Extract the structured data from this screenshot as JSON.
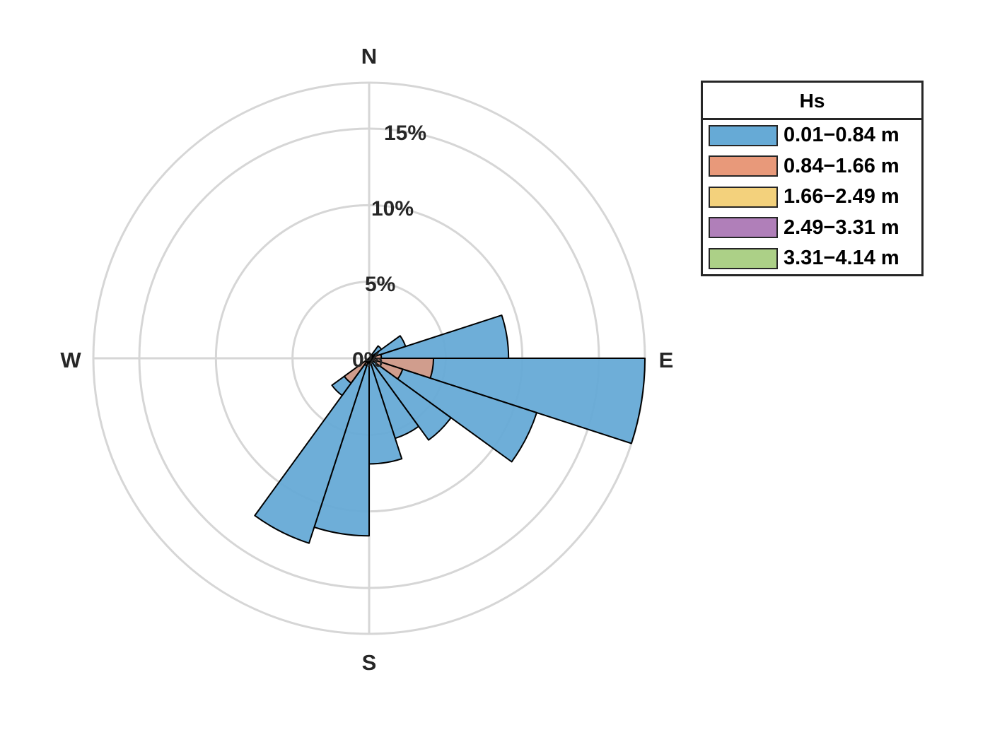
{
  "chart_data": {
    "type": "wind-rose",
    "title": "",
    "direction_labels": [
      "N",
      "E",
      "S",
      "W"
    ],
    "radial_ticks": [
      0,
      5,
      10,
      15
    ],
    "radial_tick_labels": [
      "0%",
      "5%",
      "10%",
      "15%"
    ],
    "radial_max": 18,
    "bin_width_deg": 18,
    "legend": {
      "title": "Hs",
      "placement": "top-right",
      "entries": [
        "0.01−0.84 m",
        "0.84−1.66 m",
        "1.66−2.49 m",
        "2.49−3.31 m",
        "3.31−4.14 m"
      ]
    },
    "colors": [
      "#66aad6",
      "#e8997a",
      "#f3d17c",
      "#b07fb9",
      "#acd087"
    ],
    "bins": [
      {
        "dir_start": 36,
        "dir_end": 54,
        "cumulative": [
          1.0,
          0.2,
          0.1,
          0,
          0
        ]
      },
      {
        "dir_start": 54,
        "dir_end": 72,
        "cumulative": [
          2.5,
          0.4,
          0.1,
          0,
          0
        ]
      },
      {
        "dir_start": 72,
        "dir_end": 90,
        "cumulative": [
          9.1,
          0.8,
          0.3,
          0,
          0
        ]
      },
      {
        "dir_start": 90,
        "dir_end": 108,
        "cumulative": [
          18.0,
          4.2,
          0.3,
          0,
          0
        ]
      },
      {
        "dir_start": 108,
        "dir_end": 126,
        "cumulative": [
          11.5,
          2.3,
          0.1,
          0,
          0
        ]
      },
      {
        "dir_start": 126,
        "dir_end": 144,
        "cumulative": [
          6.6,
          0.3,
          0,
          0,
          0
        ]
      },
      {
        "dir_start": 144,
        "dir_end": 162,
        "cumulative": [
          5.5,
          0.2,
          0,
          0,
          0
        ]
      },
      {
        "dir_start": 162,
        "dir_end": 180,
        "cumulative": [
          6.9,
          0.2,
          0,
          0,
          0
        ]
      },
      {
        "dir_start": 180,
        "dir_end": 198,
        "cumulative": [
          11.6,
          0.3,
          0,
          0,
          0
        ]
      },
      {
        "dir_start": 198,
        "dir_end": 216,
        "cumulative": [
          12.7,
          0.5,
          0,
          0,
          0
        ]
      },
      {
        "dir_start": 216,
        "dir_end": 234,
        "cumulative": [
          3.0,
          2.0,
          0,
          0,
          0
        ]
      }
    ]
  }
}
